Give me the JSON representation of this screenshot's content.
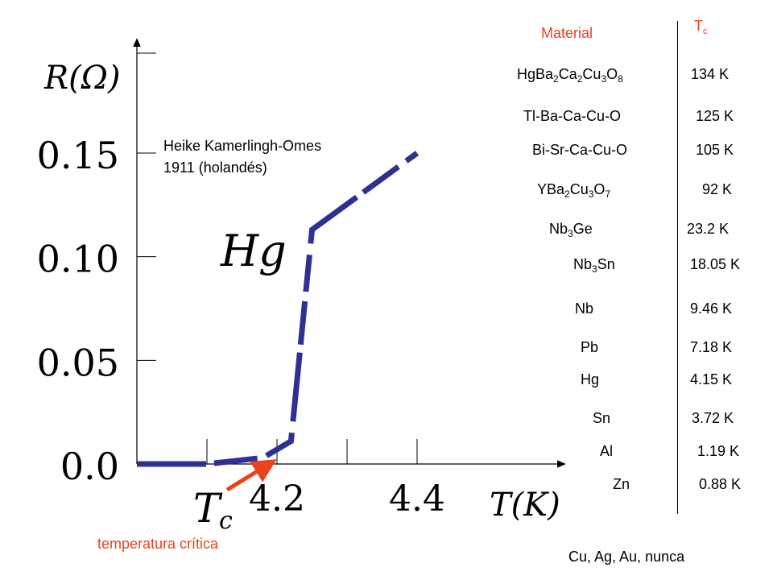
{
  "chart_data": {
    "type": "line",
    "ylabel": "R(Ω)",
    "xlabel": "T(K)",
    "y_ticks": [
      "0.15",
      "0.10",
      "0.05",
      "0.0"
    ],
    "y_tick_values": [
      0.15,
      0.1,
      0.05,
      0.0
    ],
    "x_ticks": [
      "4.2",
      "4.4"
    ],
    "x_tick_values": [
      4.2,
      4.4
    ],
    "xlim": [
      4.0,
      4.4
    ],
    "ylim": [
      0,
      0.15
    ],
    "series": [
      {
        "label": "Hg",
        "color": "#2e3192",
        "dashed": true,
        "x": [
          4.0,
          4.1,
          4.18,
          4.22,
          4.25,
          4.4
        ],
        "y": [
          0.0,
          0.0,
          0.003,
          0.011,
          0.113,
          0.15
        ]
      }
    ],
    "tc_label": "T_c",
    "tc_arrow_color": "#e8421e",
    "tc_caption": "temperatura crítica",
    "annotation_lines": [
      "Heike Kamerlingh-Omes",
      "1911 (holandés)"
    ]
  },
  "table": {
    "header_material": "Material",
    "header_tc": "T",
    "header_tc_sub": "c",
    "rows": [
      {
        "parts": [
          [
            "HgBa",
            ""
          ],
          [
            "2",
            "sub"
          ],
          [
            "Ca",
            ""
          ],
          [
            "2",
            "sub"
          ],
          [
            "Cu",
            ""
          ],
          [
            "3",
            "sub"
          ],
          [
            "O",
            ""
          ],
          [
            "8",
            "sub"
          ]
        ],
        "tc": "134 K"
      },
      {
        "parts": [
          [
            "Tl-Ba-Ca-Cu-O",
            ""
          ]
        ],
        "tc": "125 K"
      },
      {
        "parts": [
          [
            "Bi-Sr-Ca-Cu-O",
            ""
          ]
        ],
        "tc": "105 K"
      },
      {
        "parts": [
          [
            "YBa",
            ""
          ],
          [
            "2",
            "sub"
          ],
          [
            "Cu",
            ""
          ],
          [
            "3",
            "sub"
          ],
          [
            "O",
            ""
          ],
          [
            "7",
            "sub"
          ]
        ],
        "tc": "92 K"
      },
      {
        "parts": [
          [
            "Nb",
            ""
          ],
          [
            "3",
            "sub"
          ],
          [
            "Ge",
            ""
          ]
        ],
        "tc": "23.2 K"
      },
      {
        "parts": [
          [
            "Nb",
            ""
          ],
          [
            "3",
            "sub"
          ],
          [
            "Sn",
            ""
          ]
        ],
        "tc": "18.05 K"
      },
      {
        "parts": [
          [
            "Nb",
            ""
          ]
        ],
        "tc": "9.46 K"
      },
      {
        "parts": [
          [
            "Pb",
            ""
          ]
        ],
        "tc": "7.18 K"
      },
      {
        "parts": [
          [
            "Hg",
            ""
          ]
        ],
        "tc": "4.15 K"
      },
      {
        "parts": [
          [
            "Sn",
            ""
          ]
        ],
        "tc": "3.72 K"
      },
      {
        "parts": [
          [
            "Al",
            ""
          ]
        ],
        "tc": "1.19 K"
      },
      {
        "parts": [
          [
            "Zn",
            ""
          ]
        ],
        "tc": "0.88 K"
      }
    ],
    "footer": "Cu, Ag, Au, nunca"
  }
}
